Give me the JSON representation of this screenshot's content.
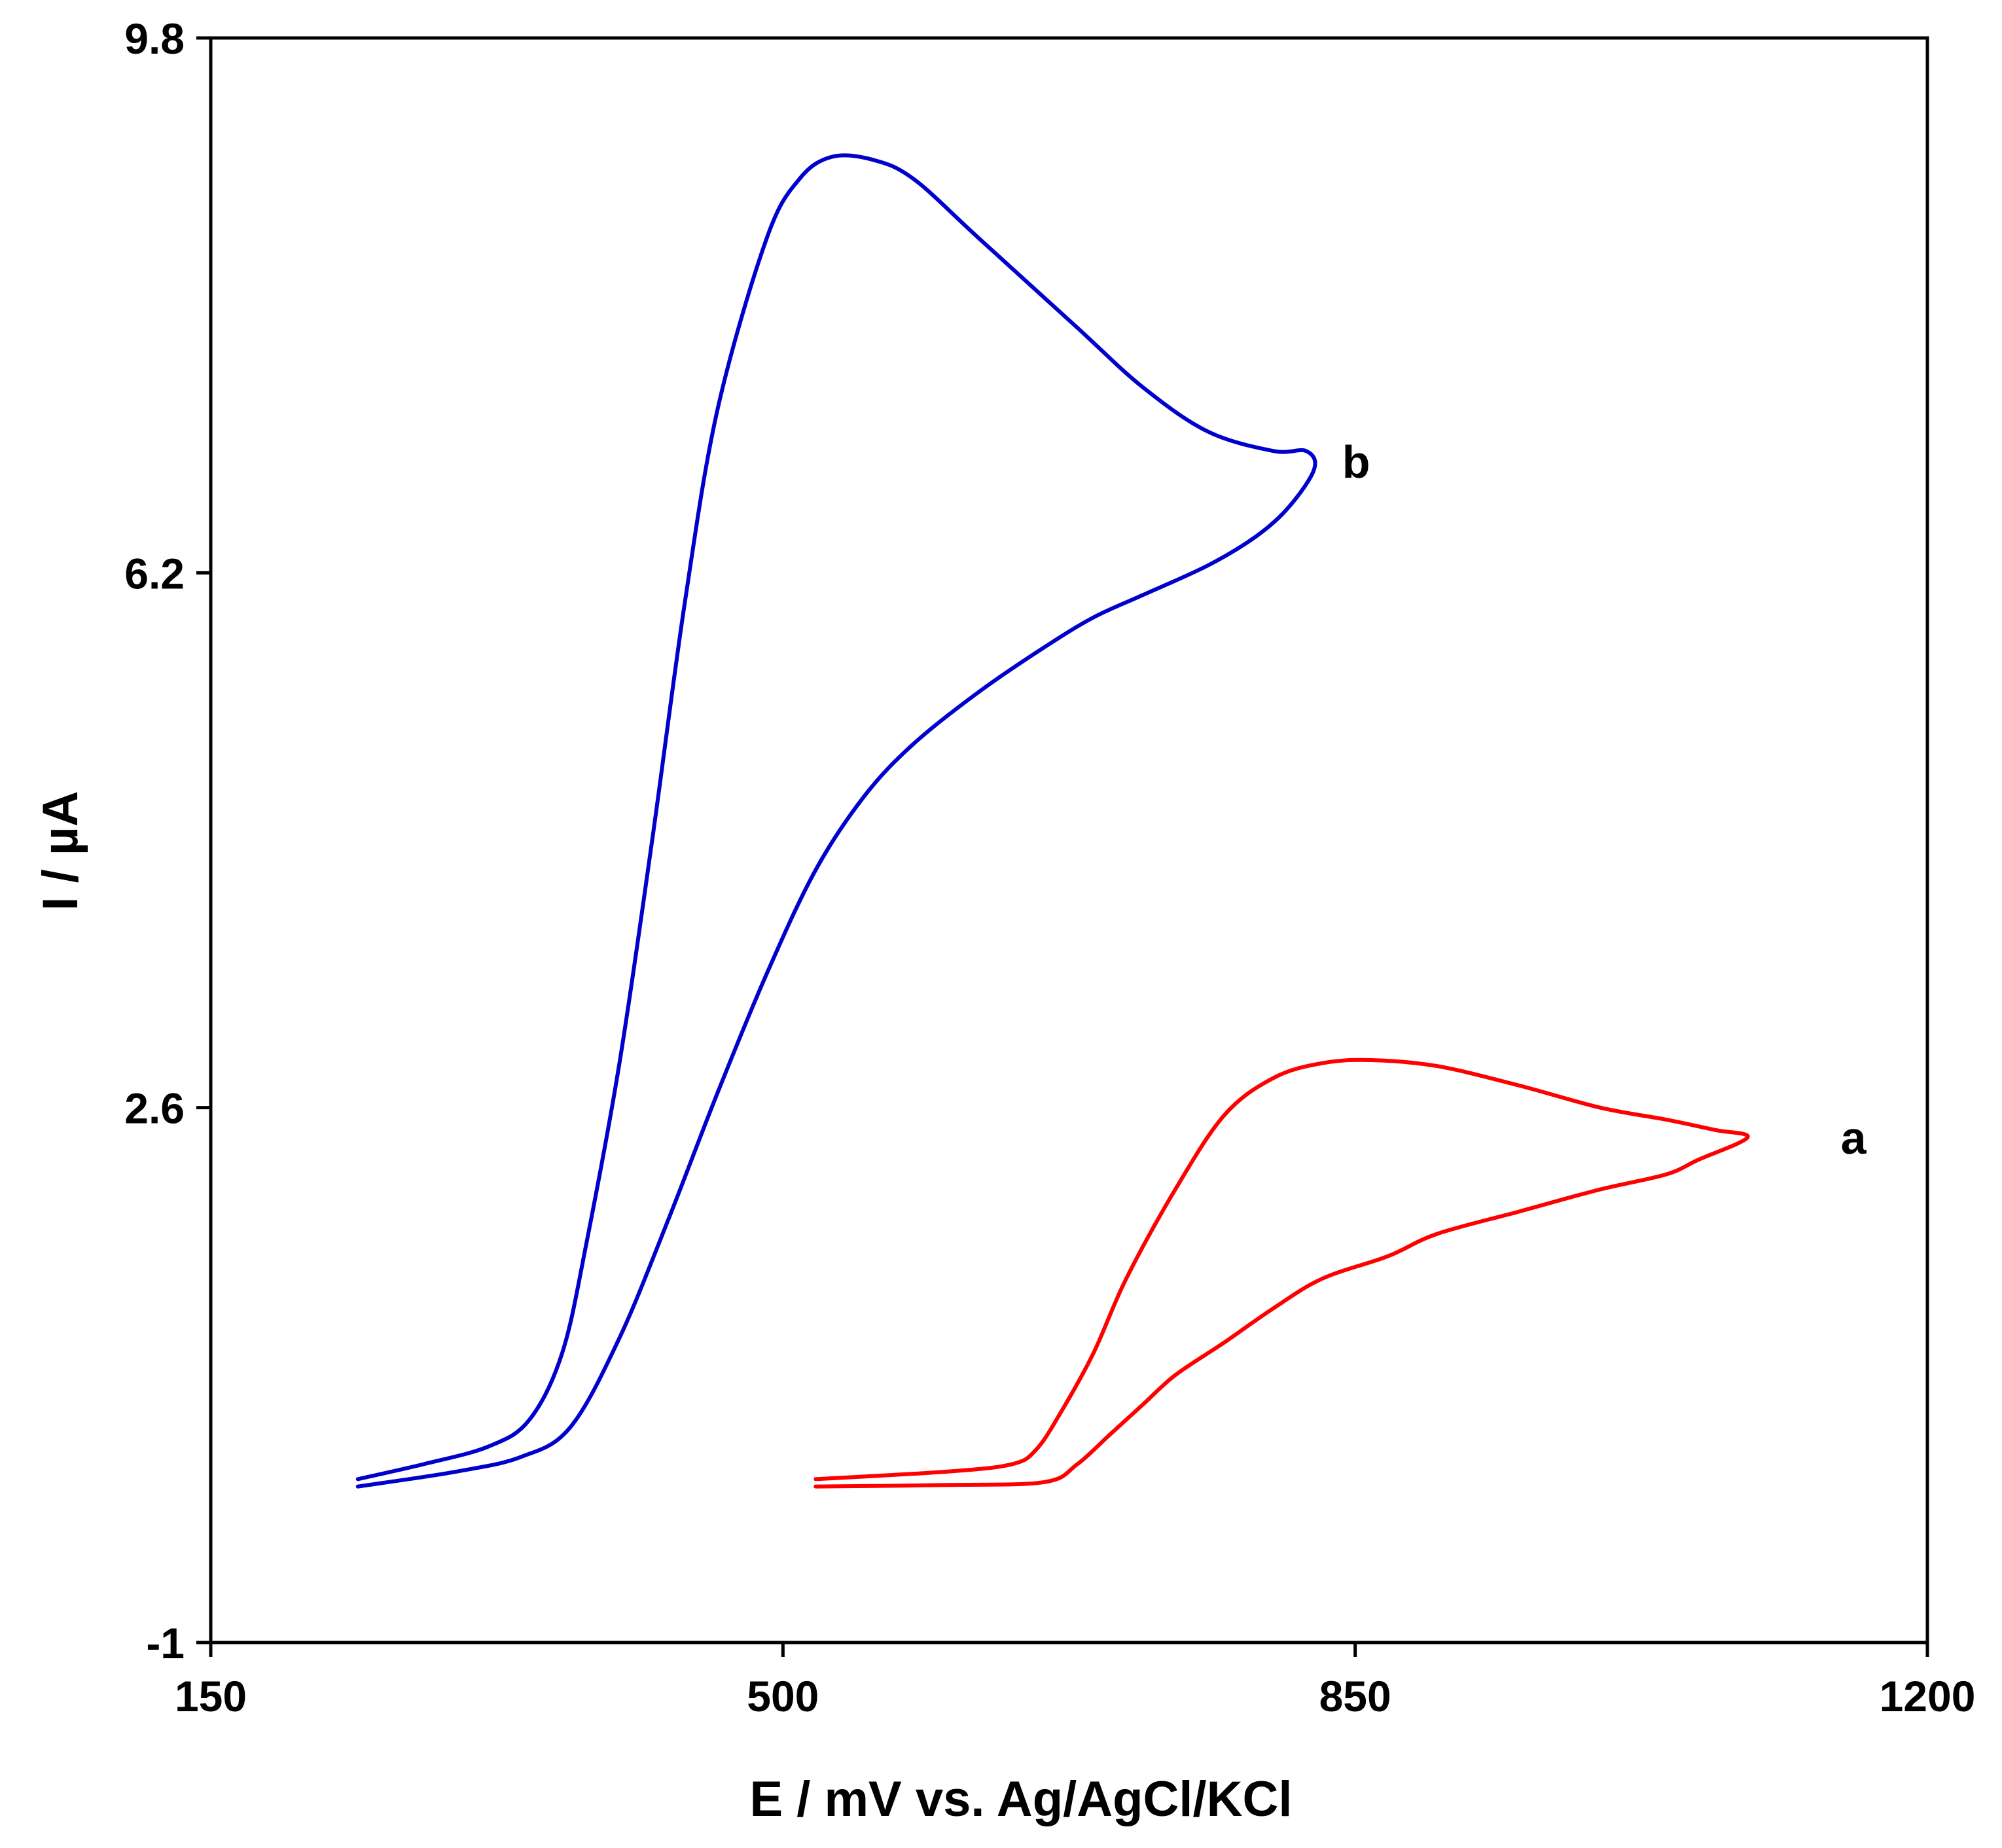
{
  "chart_data": {
    "type": "line",
    "title": "",
    "xlabel": "E / mV vs. Ag/AgCl/KCl",
    "ylabel": "I / µA",
    "xlim": [
      150,
      1200
    ],
    "ylim": [
      -1,
      9.8
    ],
    "xticks": [
      150,
      500,
      850,
      1200
    ],
    "yticks": [
      -1,
      2.6,
      6.2,
      9.8
    ],
    "xtick_labels": [
      "150",
      "500",
      "850",
      "1200"
    ],
    "ytick_labels": [
      "-1",
      "2.6",
      "6.2",
      "9.8"
    ],
    "grid": false,
    "legend": "none",
    "series": [
      {
        "name": "a",
        "label": "a",
        "color": "#ff0000",
        "label_at": [
          1135,
          2.4
        ],
        "x": [
          520,
          600,
          640,
          655,
          670,
          690,
          710,
          740,
          770,
          800,
          830,
          860,
          900,
          950,
          1000,
          1040,
          1070,
          1090,
          1060,
          1040,
          1000,
          950,
          900,
          870,
          830,
          800,
          770,
          740,
          720,
          700,
          680,
          660,
          600,
          520
        ],
        "y": [
          0.1,
          0.15,
          0.2,
          0.3,
          0.55,
          0.95,
          1.45,
          2.05,
          2.55,
          2.8,
          2.9,
          2.92,
          2.88,
          2.75,
          2.6,
          2.52,
          2.45,
          2.4,
          2.25,
          2.15,
          2.05,
          1.9,
          1.75,
          1.6,
          1.45,
          1.25,
          1.02,
          0.8,
          0.6,
          0.4,
          0.2,
          0.08,
          0.06,
          0.05
        ]
      },
      {
        "name": "b",
        "label": "b",
        "color": "#0000cc",
        "label_at": [
          830,
          6.95
        ],
        "x": [
          240,
          280,
          320,
          345,
          365,
          380,
          400,
          420,
          440,
          460,
          490,
          510,
          530,
          555,
          580,
          620,
          680,
          720,
          760,
          800,
          820,
          825,
          810,
          790,
          760,
          720,
          690,
          660,
          620,
          580,
          550,
          520,
          490,
          460,
          430,
          400,
          370,
          340,
          300,
          240
        ],
        "y": [
          0.1,
          0.2,
          0.32,
          0.5,
          0.95,
          1.7,
          2.9,
          4.4,
          6.0,
          7.3,
          8.45,
          8.85,
          9.0,
          8.98,
          8.85,
          8.45,
          7.85,
          7.45,
          7.15,
          7.02,
          7.02,
          6.9,
          6.65,
          6.45,
          6.25,
          6.05,
          5.9,
          5.7,
          5.4,
          5.05,
          4.7,
          4.2,
          3.5,
          2.7,
          1.85,
          1.05,
          0.45,
          0.25,
          0.15,
          0.05
        ]
      }
    ]
  }
}
